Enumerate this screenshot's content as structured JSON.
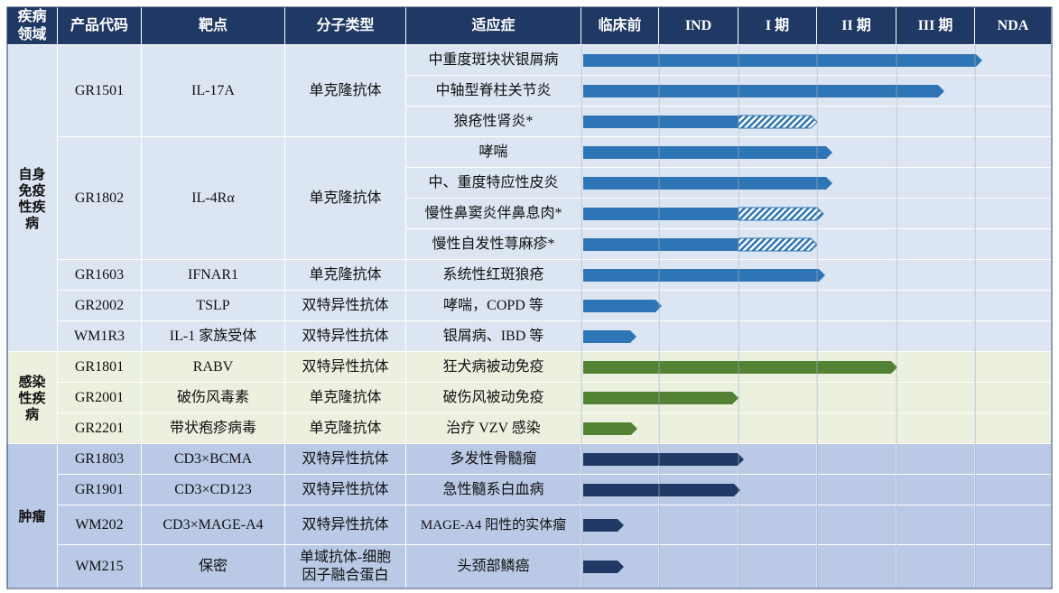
{
  "header": {
    "area": "疾病领域",
    "code": "产品代码",
    "target": "靶点",
    "type": "分子类型",
    "indication": "适应症",
    "phases": [
      "临床前",
      "IND",
      "I 期",
      "II 期",
      "III 期",
      "NDA"
    ]
  },
  "groups": [
    {
      "area": "自身免疫性疾病",
      "products": [
        {
          "code": "GR1501",
          "target": "IL-17A",
          "type": "单克隆抗体",
          "indications": [
            "中重度斑块状银屑病",
            "中轴型脊柱关节炎",
            "狼疮性肾炎*"
          ]
        },
        {
          "code": "GR1802",
          "target": "IL-4Rα",
          "type": "单克隆抗体",
          "indications": [
            "哮喘",
            "中、重度特应性皮炎",
            "慢性鼻窦炎伴鼻息肉*",
            "慢性自发性荨麻疹*"
          ]
        },
        {
          "code": "GR1603",
          "target": "IFNAR1",
          "type": "单克隆抗体",
          "indications": [
            "系统性红斑狼疮"
          ]
        },
        {
          "code": "GR2002",
          "target": "TSLP",
          "type": "双特异性抗体",
          "indications": [
            "哮喘，COPD 等"
          ]
        },
        {
          "code": "WM1R3",
          "target": "IL-1 家族受体",
          "type": "双特异性抗体",
          "indications": [
            "银屑病、IBD 等"
          ]
        }
      ]
    },
    {
      "area": "感染性疾病",
      "products": [
        {
          "code": "GR1801",
          "target": "RABV",
          "type": "双特异性抗体",
          "indications": [
            "狂犬病被动免疫"
          ]
        },
        {
          "code": "GR2001",
          "target": "破伤风毒素",
          "type": "单克隆抗体",
          "indications": [
            "破伤风被动免疫"
          ]
        },
        {
          "code": "GR2201",
          "target": "带状疱疹病毒",
          "type": "单克隆抗体",
          "indications": [
            "治疗 VZV 感染"
          ]
        }
      ]
    },
    {
      "area": "肿瘤",
      "products": [
        {
          "code": "GR1803",
          "target": "CD3×BCMA",
          "type": "双特异性抗体",
          "indications": [
            "多发性骨髓瘤"
          ]
        },
        {
          "code": "GR1901",
          "target": "CD3×CD123",
          "type": "双特异性抗体",
          "indications": [
            "急性髓系白血病"
          ]
        },
        {
          "code": "WM202",
          "target": "CD3×MAGE-A4",
          "type": "双特异性抗体",
          "indications": [
            "MAGE-A4 阳性的实体瘤"
          ]
        },
        {
          "code": "WM215",
          "target": "保密",
          "type": "单域抗体-细胞因子融合蛋白",
          "indications": [
            "头颈部鳞癌"
          ]
        }
      ]
    }
  ]
}
